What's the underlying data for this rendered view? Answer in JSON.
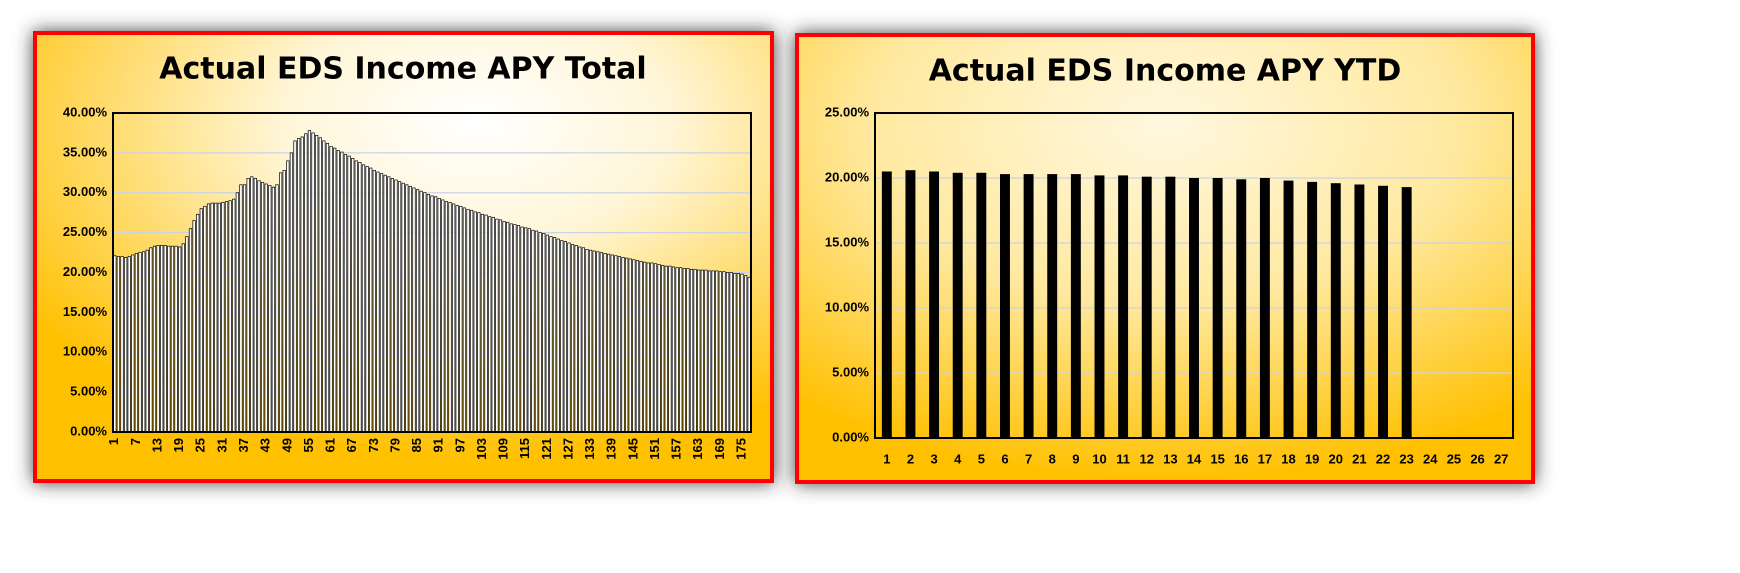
{
  "chart_data": [
    {
      "type": "bar",
      "title": "Actual EDS Income APY Total",
      "color": "#ffffff",
      "edgecolor": "#000000",
      "grid": true,
      "ylim": [
        0,
        40
      ],
      "yticks": [
        {
          "value": 0,
          "label": "0.00%"
        },
        {
          "value": 5,
          "label": "5.00%"
        },
        {
          "value": 10,
          "label": "10.00%"
        },
        {
          "value": 15,
          "label": "15.00%"
        },
        {
          "value": 20,
          "label": "20.00%"
        },
        {
          "value": 25,
          "label": "25.00%"
        },
        {
          "value": 30,
          "label": "30.00%"
        },
        {
          "value": 35,
          "label": "35.00%"
        },
        {
          "value": 40,
          "label": "40.00%"
        }
      ],
      "categories": [
        1,
        null,
        null,
        null,
        null,
        null,
        7,
        null,
        null,
        null,
        null,
        null,
        13,
        null,
        null,
        null,
        null,
        null,
        19,
        null,
        null,
        null,
        null,
        null,
        25,
        null,
        null,
        null,
        null,
        null,
        31,
        null,
        null,
        null,
        null,
        null,
        37,
        null,
        null,
        null,
        null,
        null,
        43,
        null,
        null,
        null,
        null,
        null,
        49,
        null,
        null,
        null,
        null,
        null,
        55,
        null,
        null,
        null,
        null,
        null,
        61,
        null,
        null,
        null,
        null,
        null,
        67,
        null,
        null,
        null,
        null,
        null,
        73,
        null,
        null,
        null,
        null,
        null,
        79,
        null,
        null,
        null,
        null,
        null,
        85,
        null,
        null,
        null,
        null,
        null,
        91,
        null,
        null,
        null,
        null,
        null,
        97,
        null,
        null,
        null,
        null,
        null,
        103,
        null,
        null,
        null,
        null,
        null,
        109,
        null,
        null,
        null,
        null,
        null,
        115,
        null,
        null,
        null,
        null,
        null,
        121,
        null,
        null,
        null,
        null,
        null,
        127,
        null,
        null,
        null,
        null,
        null,
        133,
        null,
        null,
        null,
        null,
        null,
        139,
        null,
        null,
        null,
        null,
        null,
        145,
        null,
        null,
        null,
        null,
        null,
        151,
        null,
        null,
        null,
        null,
        null,
        157,
        null,
        null,
        null,
        null,
        null,
        163,
        null,
        null,
        null,
        null,
        null,
        169,
        null,
        null,
        null,
        null,
        null,
        175,
        null,
        null
      ],
      "values": [
        22.1,
        22.0,
        22.0,
        21.9,
        22.0,
        22.2,
        22.4,
        22.5,
        22.6,
        22.8,
        23.1,
        23.3,
        23.4,
        23.4,
        23.4,
        23.3,
        23.3,
        23.3,
        23.2,
        23.6,
        24.5,
        25.5,
        26.5,
        27.3,
        28.0,
        28.3,
        28.6,
        28.7,
        28.7,
        28.7,
        28.8,
        28.9,
        29.0,
        29.2,
        30.0,
        31.0,
        31.0,
        31.8,
        32.0,
        31.8,
        31.5,
        31.3,
        31.1,
        30.9,
        30.7,
        31.0,
        32.5,
        32.8,
        34.0,
        35.0,
        36.5,
        36.8,
        37.0,
        37.4,
        37.8,
        37.5,
        37.2,
        36.9,
        36.5,
        36.2,
        35.8,
        35.6,
        35.3,
        35.1,
        34.8,
        34.6,
        34.3,
        34.0,
        33.8,
        33.5,
        33.3,
        33.1,
        32.8,
        32.6,
        32.4,
        32.2,
        32.0,
        31.8,
        31.6,
        31.4,
        31.2,
        31.0,
        30.8,
        30.6,
        30.4,
        30.2,
        30.0,
        29.8,
        29.6,
        29.5,
        29.3,
        29.1,
        28.9,
        28.8,
        28.6,
        28.4,
        28.3,
        28.1,
        27.9,
        27.8,
        27.6,
        27.5,
        27.3,
        27.2,
        27.0,
        26.9,
        26.7,
        26.6,
        26.4,
        26.3,
        26.1,
        26.0,
        25.9,
        25.7,
        25.6,
        25.5,
        25.3,
        25.2,
        25.0,
        24.9,
        24.7,
        24.5,
        24.4,
        24.2,
        24.0,
        23.9,
        23.7,
        23.5,
        23.4,
        23.2,
        23.1,
        22.9,
        22.8,
        22.7,
        22.6,
        22.5,
        22.4,
        22.3,
        22.2,
        22.1,
        22.0,
        21.9,
        21.8,
        21.7,
        21.6,
        21.5,
        21.4,
        21.3,
        21.2,
        21.2,
        21.1,
        21.0,
        20.9,
        20.8,
        20.8,
        20.7,
        20.6,
        20.6,
        20.5,
        20.5,
        20.4,
        20.4,
        20.3,
        20.3,
        20.3,
        20.2,
        20.2,
        20.2,
        20.1,
        20.1,
        20.0,
        20.0,
        19.9,
        19.9,
        19.8,
        19.6,
        19.4
      ]
    },
    {
      "type": "bar",
      "title": "Actual EDS Income APY YTD",
      "color": "#000000",
      "edgecolor": "#000000",
      "grid": true,
      "ylim": [
        0,
        25
      ],
      "yticks": [
        {
          "value": 0,
          "label": "0.00%"
        },
        {
          "value": 5,
          "label": "5.00%"
        },
        {
          "value": 10,
          "label": "10.00%"
        },
        {
          "value": 15,
          "label": "15.00%"
        },
        {
          "value": 20,
          "label": "20.00%"
        },
        {
          "value": 25,
          "label": "25.00%"
        }
      ],
      "categories": [
        1,
        2,
        3,
        4,
        5,
        6,
        7,
        8,
        9,
        10,
        11,
        12,
        13,
        14,
        15,
        16,
        17,
        18,
        19,
        20,
        21,
        22,
        23,
        24,
        25,
        26,
        27
      ],
      "values": [
        20.5,
        20.6,
        20.5,
        20.4,
        20.4,
        20.3,
        20.3,
        20.3,
        20.3,
        20.2,
        20.2,
        20.1,
        20.1,
        20.0,
        20.0,
        19.9,
        20.0,
        19.8,
        19.7,
        19.6,
        19.5,
        19.4,
        19.3,
        null,
        null,
        null,
        null
      ]
    }
  ]
}
